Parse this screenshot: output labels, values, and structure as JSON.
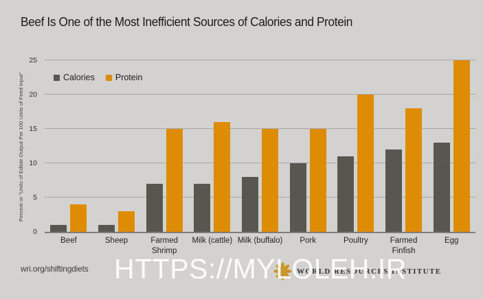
{
  "title": "Beef Is One of the Most Inefficient Sources of Calories and Protein",
  "chart_data": {
    "type": "bar",
    "title": "Beef Is One of the Most Inefficient Sources of Calories and Protein",
    "categories": [
      "Beef",
      "Sheep",
      "Farmed\nShrimp",
      "Milk (cattle)",
      "Milk (buffalo)",
      "Pork",
      "Poultry",
      "Farmed\nFinfish",
      "Egg"
    ],
    "series": [
      {
        "name": "Calories",
        "color": "#575750",
        "values": [
          1,
          1,
          7,
          7,
          8,
          10,
          11,
          12,
          13
        ]
      },
      {
        "name": "Protein",
        "color": "#de8c04",
        "values": [
          4,
          3,
          15,
          16,
          15,
          15,
          20,
          18,
          25
        ]
      }
    ],
    "xlabel": "",
    "ylabel": "Percent or \"Units of Edible Output Per 100 Units of Feed Input\"",
    "yticks": [
      0,
      5,
      10,
      15,
      20,
      25
    ],
    "ylim": [
      0,
      25
    ],
    "grid": true,
    "legend_position": "top-left"
  },
  "footer": {
    "source": "wri.org/shiftingdiets",
    "org_name": "WORLD RESOURCES INSTITUTE",
    "org_icon": "wri-flower-icon"
  },
  "watermark": {
    "text": "HTTPS://MYLOLEH.IR"
  },
  "colors": {
    "background": "#d3d2d0",
    "calories_bar": "#575750",
    "protein_bar": "#de8c04",
    "gridline": "#a6a5a3",
    "baseline": "#7d7c7a",
    "wri_gold": "#c9941e",
    "watermark": "#ffffff"
  }
}
